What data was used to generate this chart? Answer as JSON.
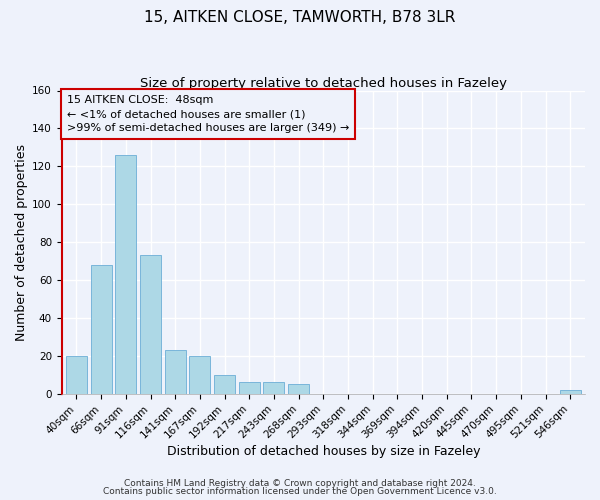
{
  "title": "15, AITKEN CLOSE, TAMWORTH, B78 3LR",
  "subtitle": "Size of property relative to detached houses in Fazeley",
  "xlabel": "Distribution of detached houses by size in Fazeley",
  "ylabel": "Number of detached properties",
  "bar_labels": [
    "40sqm",
    "66sqm",
    "91sqm",
    "116sqm",
    "141sqm",
    "167sqm",
    "192sqm",
    "217sqm",
    "243sqm",
    "268sqm",
    "293sqm",
    "318sqm",
    "344sqm",
    "369sqm",
    "394sqm",
    "420sqm",
    "445sqm",
    "470sqm",
    "495sqm",
    "521sqm",
    "546sqm"
  ],
  "bar_values": [
    20,
    68,
    126,
    73,
    23,
    20,
    10,
    6,
    6,
    5,
    0,
    0,
    0,
    0,
    0,
    0,
    0,
    0,
    0,
    0,
    2
  ],
  "bar_color": "#add8e6",
  "bar_edge_color": "#6baed6",
  "highlight_left_spine_color": "#cc0000",
  "ylim": [
    0,
    160
  ],
  "yticks": [
    0,
    20,
    40,
    60,
    80,
    100,
    120,
    140,
    160
  ],
  "annotation_line1": "15 AITKEN CLOSE:  48sqm",
  "annotation_line2": "← <1% of detached houses are smaller (1)",
  "annotation_line3": ">99% of semi-detached houses are larger (349) →",
  "box_border_color": "#cc0000",
  "footer_line1": "Contains HM Land Registry data © Crown copyright and database right 2024.",
  "footer_line2": "Contains public sector information licensed under the Open Government Licence v3.0.",
  "background_color": "#eef2fb",
  "grid_color": "#ffffff",
  "title_fontsize": 11,
  "subtitle_fontsize": 9.5,
  "axis_label_fontsize": 9,
  "tick_fontsize": 7.5,
  "annotation_fontsize": 8,
  "footer_fontsize": 6.5
}
